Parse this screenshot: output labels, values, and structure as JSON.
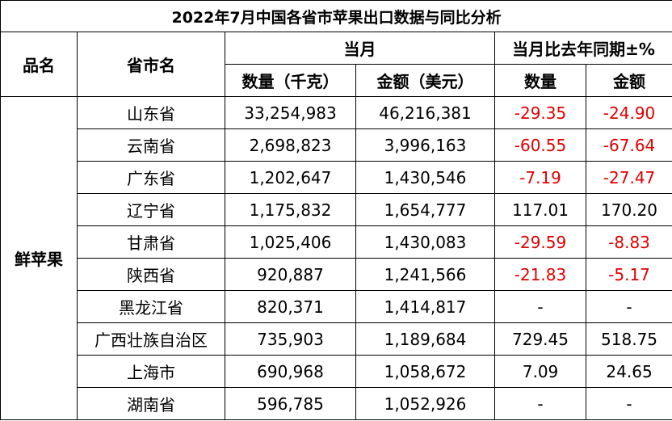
{
  "title": "2022年7月中国各省市苹果出口数据与同比分析",
  "header": {
    "product": "品名",
    "province": "省市名",
    "current": "当月",
    "yoy": "当月比去年同期±%",
    "qty": "数量（千克）",
    "amount": "金额（美元）",
    "yoy_qty": "数量",
    "yoy_amount": "金额"
  },
  "table": {
    "product": "鲜苹果",
    "rows": [
      [
        "山东省",
        "33,254,983",
        "46,216,381",
        "-29.35",
        "-24.90"
      ],
      [
        "云南省",
        "2,698,823",
        "3,996,163",
        "-60.55",
        "-67.64"
      ],
      [
        "广东省",
        "1,202,647",
        "1,430,546",
        "-7.19",
        "-27.47"
      ],
      [
        "辽宁省",
        "1,175,832",
        "1,654,777",
        "117.01",
        "170.20"
      ],
      [
        "甘肃省",
        "1,025,406",
        "1,430,083",
        "-29.59",
        "-8.83"
      ],
      [
        "陕西省",
        "920,887",
        "1,241,566",
        "-21.83",
        "-5.17"
      ],
      [
        "黑龙江省",
        "820,371",
        "1,414,817",
        "-",
        "-"
      ],
      [
        "广西壮族自治区",
        "735,903",
        "1,189,684",
        "729.45",
        "518.75"
      ],
      [
        "上海市",
        "690,968",
        "1,058,672",
        "7.09",
        "24.65"
      ],
      [
        "湖南省",
        "596,785",
        "1,052,926",
        "-",
        "-"
      ]
    ]
  }
}
